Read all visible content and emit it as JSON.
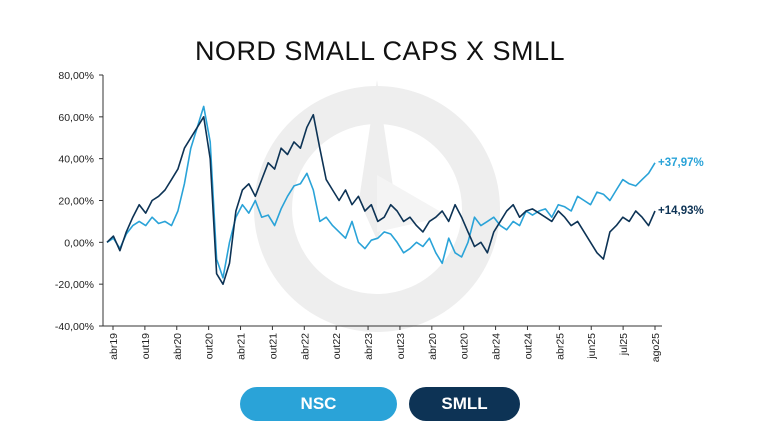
{
  "colors": {
    "nsc": "#2aa3d8",
    "smll": "#0d3355",
    "axis": "#333333",
    "watermark": "#eeeeee"
  },
  "chart_data": {
    "type": "line",
    "title": "NORD SMALL CAPS X SMLL",
    "xlabel": "",
    "ylabel": "",
    "ylim": [
      -40,
      80
    ],
    "ytick_values": [
      -40,
      -20,
      0,
      20,
      40,
      60,
      80
    ],
    "ytick_labels": [
      "-40,00%",
      "-20,00%",
      "0,00%",
      "20,00%",
      "40,00%",
      "60,00%",
      "80,00%"
    ],
    "x_tick_labels": [
      "abr19",
      "out19",
      "abr20",
      "out20",
      "abr21",
      "out21",
      "abr22",
      "out22",
      "abr23",
      "out23",
      "abr20",
      "out20",
      "abr24",
      "out24",
      "abr25",
      "jun25",
      "jul25",
      "ago25"
    ],
    "x": [
      0,
      1,
      2,
      3,
      4,
      5,
      6,
      7,
      8,
      9,
      10,
      11,
      12,
      13,
      14,
      15,
      16,
      17,
      18,
      19,
      20,
      21,
      22,
      23,
      24,
      25,
      26,
      27,
      28,
      29,
      30,
      31,
      32,
      33,
      34,
      35,
      36,
      37,
      38,
      39,
      40,
      41,
      42,
      43,
      44,
      45,
      46,
      47,
      48,
      49,
      50,
      51,
      52,
      53,
      54,
      55,
      56,
      57,
      58,
      59,
      60,
      61,
      62,
      63,
      64,
      65,
      66,
      67,
      68,
      69,
      70,
      71,
      72,
      73,
      74,
      75,
      76,
      77,
      78,
      79,
      80,
      81,
      82,
      83,
      84,
      85
    ],
    "series": [
      {
        "name": "NSC",
        "end_label": "+37,97%",
        "values": [
          0,
          2,
          -3,
          4,
          8,
          10,
          8,
          12,
          9,
          10,
          8,
          15,
          28,
          45,
          55,
          65,
          48,
          -8,
          -17,
          0,
          12,
          18,
          14,
          20,
          12,
          13,
          8,
          16,
          22,
          27,
          28,
          33,
          25,
          10,
          12,
          8,
          5,
          2,
          10,
          0,
          -3,
          1,
          2,
          5,
          4,
          0,
          -5,
          -3,
          0,
          -2,
          2,
          -5,
          -10,
          2,
          -5,
          -7,
          0,
          12,
          8,
          10,
          12,
          8,
          6,
          10,
          8,
          15,
          13,
          15,
          16,
          12,
          18,
          17,
          15,
          22,
          20,
          18,
          24,
          23,
          20,
          25,
          30,
          28,
          27,
          30,
          33,
          38
        ]
      },
      {
        "name": "SMLL",
        "end_label": "+14,93%",
        "values": [
          0,
          3,
          -4,
          5,
          12,
          18,
          14,
          20,
          22,
          25,
          30,
          35,
          45,
          50,
          55,
          60,
          40,
          -15,
          -20,
          -10,
          15,
          25,
          28,
          22,
          30,
          38,
          35,
          45,
          42,
          48,
          45,
          55,
          61,
          45,
          30,
          25,
          20,
          25,
          18,
          22,
          15,
          18,
          10,
          12,
          18,
          15,
          10,
          12,
          8,
          5,
          10,
          12,
          15,
          10,
          18,
          12,
          5,
          -2,
          0,
          -5,
          5,
          10,
          15,
          18,
          12,
          15,
          16,
          14,
          12,
          10,
          15,
          12,
          8,
          10,
          5,
          0,
          -5,
          -8,
          5,
          8,
          12,
          10,
          15,
          12,
          8,
          15
        ]
      }
    ]
  }
}
